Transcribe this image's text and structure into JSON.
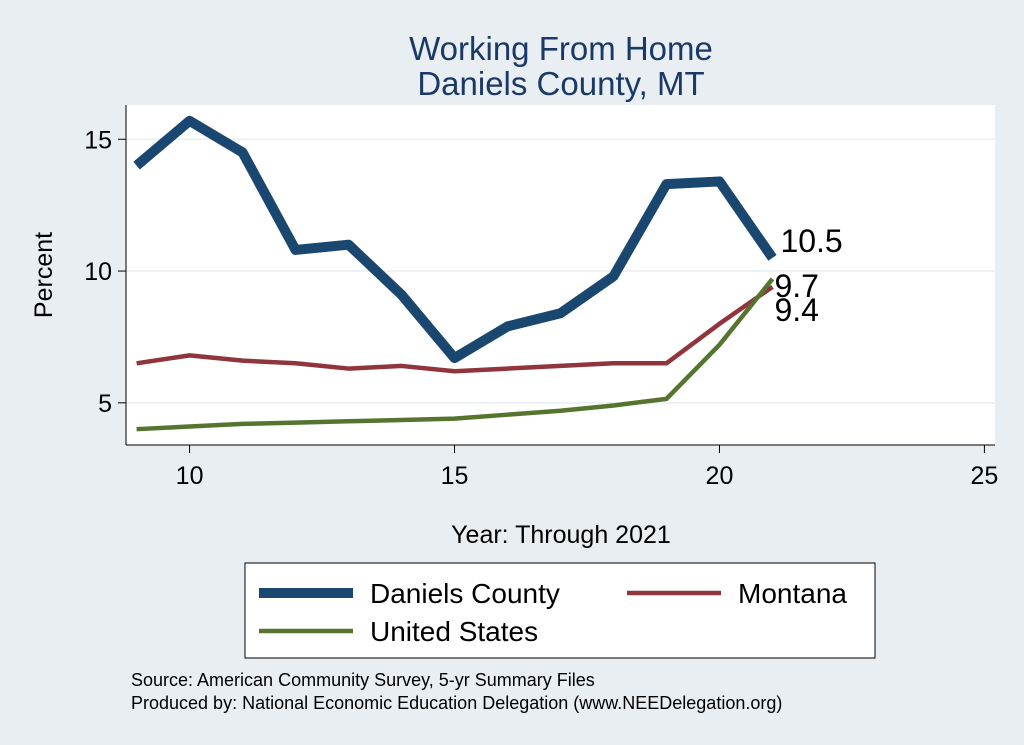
{
  "chart_data": {
    "type": "line",
    "title": [
      "Working From Home",
      "Daniels County, MT"
    ],
    "xlabel": "Year: Through 2021",
    "ylabel": "Percent",
    "xlim": [
      8.8,
      25.2
    ],
    "ylim": [
      3.4,
      16.3
    ],
    "xticks": [
      10,
      15,
      20,
      25
    ],
    "yticks": [
      5,
      10,
      15
    ],
    "grid": true,
    "legend_position": "bottom",
    "x": [
      9,
      10,
      11,
      12,
      13,
      14,
      15,
      16,
      17,
      18,
      19,
      20,
      21
    ],
    "series": [
      {
        "name": "Daniels County",
        "color": "#1a476f",
        "width": 10,
        "values": [
          14.0,
          15.7,
          14.5,
          10.8,
          11.0,
          9.1,
          6.7,
          7.9,
          8.4,
          9.8,
          13.3,
          13.4,
          10.5
        ],
        "end_label": "10.5"
      },
      {
        "name": "Montana",
        "color": "#90353b",
        "width": 4.5,
        "values": [
          6.5,
          6.8,
          6.6,
          6.5,
          6.3,
          6.4,
          6.2,
          6.3,
          6.4,
          6.5,
          6.5,
          8.0,
          9.4
        ],
        "end_label": "9.4"
      },
      {
        "name": "United States",
        "color": "#55752f",
        "width": 4.5,
        "values": [
          4.0,
          4.1,
          4.2,
          4.25,
          4.3,
          4.35,
          4.4,
          4.55,
          4.7,
          4.9,
          5.15,
          7.2,
          9.7
        ],
        "end_label": "9.7"
      }
    ]
  },
  "source": {
    "line1": "Source: American Community Survey, 5-yr Summary Files",
    "line2": "Produced by: National Economic Education Delegation (www.NEEDelegation.org)"
  }
}
